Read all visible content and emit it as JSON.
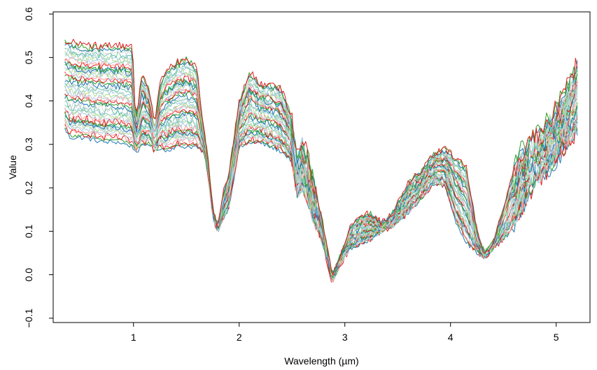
{
  "chart_data": {
    "type": "line",
    "title": "",
    "xlabel": "Wavelength (µm)",
    "ylabel": "Value",
    "xlim": [
      0.24,
      5.32
    ],
    "ylim": [
      -0.11,
      0.605
    ],
    "xticks": [
      1,
      2,
      3,
      4,
      5
    ],
    "xtick_labels": [
      "1",
      "2",
      "3",
      "4",
      "5"
    ],
    "yticks": [
      -0.1,
      0.0,
      0.1,
      0.2,
      0.3,
      0.4,
      0.5,
      0.6
    ],
    "ytick_labels": [
      "−0.1",
      "0.0",
      "0.1",
      "0.2",
      "0.3",
      "0.4",
      "0.5",
      "0.6"
    ],
    "grid": false,
    "legend": "none",
    "palette": [
      "#1f78b4",
      "#33a02c",
      "#e31a1c",
      "#fb9a99",
      "#a6cee3",
      "#b2df8a",
      "#9ecae1",
      "#66c2a5",
      "#d9d9d9"
    ],
    "series_count": 48,
    "shape_knots": {
      "x": [
        0.35,
        0.4,
        0.55,
        0.7,
        0.85,
        0.99,
        1.02,
        1.08,
        1.15,
        1.2,
        1.25,
        1.3,
        1.4,
        1.5,
        1.6,
        1.66,
        1.7,
        1.75,
        1.8,
        1.85,
        1.9,
        2.0,
        2.1,
        2.2,
        2.3,
        2.4,
        2.5,
        2.55,
        2.6,
        2.7,
        2.8,
        2.88,
        2.95,
        3.05,
        3.15,
        3.25,
        3.35,
        3.45,
        3.6,
        3.75,
        3.85,
        3.95,
        4.05,
        4.15,
        4.25,
        4.32,
        4.4,
        4.55,
        4.65,
        4.8,
        4.95,
        5.1,
        5.2
      ],
      "low": [
        0.33,
        0.31,
        0.31,
        0.3,
        0.3,
        0.29,
        0.28,
        0.29,
        0.3,
        0.28,
        0.29,
        0.28,
        0.29,
        0.29,
        0.29,
        0.28,
        0.24,
        0.13,
        0.1,
        0.13,
        0.15,
        0.29,
        0.3,
        0.3,
        0.29,
        0.28,
        0.26,
        0.18,
        0.2,
        0.13,
        0.06,
        -0.02,
        0.02,
        0.06,
        0.07,
        0.08,
        0.1,
        0.11,
        0.14,
        0.18,
        0.21,
        0.2,
        0.12,
        0.07,
        0.05,
        0.04,
        0.06,
        0.09,
        0.13,
        0.21,
        0.24,
        0.29,
        0.33
      ],
      "high": [
        0.54,
        0.54,
        0.53,
        0.53,
        0.53,
        0.53,
        0.36,
        0.46,
        0.43,
        0.35,
        0.44,
        0.47,
        0.49,
        0.5,
        0.48,
        0.34,
        0.28,
        0.15,
        0.11,
        0.19,
        0.23,
        0.4,
        0.47,
        0.44,
        0.44,
        0.43,
        0.36,
        0.27,
        0.31,
        0.22,
        0.11,
        0.0,
        0.04,
        0.11,
        0.14,
        0.14,
        0.12,
        0.14,
        0.21,
        0.25,
        0.28,
        0.29,
        0.27,
        0.25,
        0.1,
        0.05,
        0.07,
        0.2,
        0.28,
        0.32,
        0.36,
        0.43,
        0.49
      ]
    }
  }
}
